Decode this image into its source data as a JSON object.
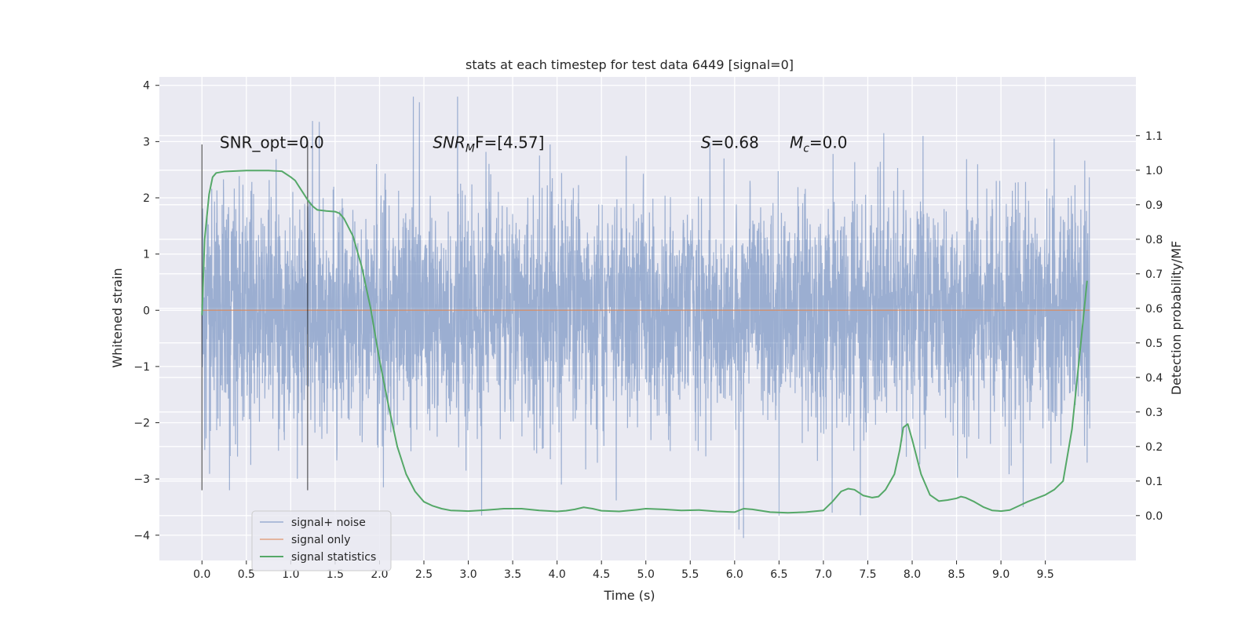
{
  "chart_data": {
    "type": "line",
    "title": "stats at each timestep for test data 6449 [signal=0]",
    "xlabel": "Time (s)",
    "ylabel": "Whitened strain",
    "y2label": "Detection probability/MF",
    "xlim": [
      -0.48,
      10.52
    ],
    "ylim": [
      -4.45,
      4.15
    ],
    "y2lim": [
      -0.13,
      1.27
    ],
    "xticks": [
      "0.0",
      "0.5",
      "1.0",
      "1.5",
      "2.0",
      "2.5",
      "3.0",
      "3.5",
      "4.0",
      "4.5",
      "5.0",
      "5.5",
      "6.0",
      "6.5",
      "7.0",
      "7.5",
      "8.0",
      "8.5",
      "9.0",
      "9.5"
    ],
    "yticks": [
      "4",
      "3",
      "2",
      "1",
      "0",
      "−1",
      "−2",
      "−3",
      "−4"
    ],
    "y2ticks": [
      "1.1",
      "1.0",
      "0.9",
      "0.8",
      "0.7",
      "0.6",
      "0.5",
      "0.4",
      "0.3",
      "0.2",
      "0.1",
      "0.0"
    ],
    "grid": true,
    "legend_position": "lower-left",
    "annotations": [
      {
        "text": "SNR_opt=0.0",
        "x": 0.2,
        "y": 3.0
      },
      {
        "text": "SNR",
        "sub": "M",
        "tail": "F=[4.57]",
        "x": 2.6,
        "y": 3.0
      },
      {
        "text": "S",
        "tail": "=0.68",
        "x": 5.62,
        "y": 3.0
      },
      {
        "text": "M",
        "sub": "c",
        "tail": "=0.0",
        "x": 6.62,
        "y": 3.0
      }
    ],
    "vlines": [
      {
        "x": 0.0,
        "ymin": -3.2,
        "ymax": 2.95
      },
      {
        "x": 1.19,
        "ymin": -3.2,
        "ymax": 3.0
      }
    ],
    "series": [
      {
        "name": "signal+ noise",
        "color": "#4c72b0",
        "axis": "left",
        "x_range": [
          0.0,
          10.0
        ],
        "typical_amplitude": 1.0,
        "peak_max": 3.8,
        "peak_min": -4.05,
        "notable_peaks": [
          [
            2.38,
            3.8
          ],
          [
            2.88,
            3.8
          ],
          [
            2.45,
            3.7
          ],
          [
            6.1,
            -4.05
          ],
          [
            6.05,
            -3.9
          ],
          [
            3.15,
            -3.65
          ],
          [
            6.5,
            -3.65
          ],
          [
            4.05,
            -3.1
          ],
          [
            7.1,
            -3.6
          ],
          [
            9.25,
            -3.5
          ],
          [
            9.6,
            3.05
          ],
          [
            7.68,
            3.15
          ],
          [
            1.32,
            3.35
          ]
        ]
      },
      {
        "name": "signal only",
        "color": "#dd8452",
        "axis": "left",
        "x": [
          0.0,
          10.0
        ],
        "values": [
          0.0,
          0.0
        ]
      },
      {
        "name": "signal statistics",
        "color": "#55a868",
        "axis": "right",
        "x": [
          0.0,
          0.03,
          0.08,
          0.12,
          0.16,
          0.25,
          0.5,
          0.75,
          0.9,
          1.0,
          1.05,
          1.1,
          1.15,
          1.2,
          1.25,
          1.3,
          1.4,
          1.5,
          1.55,
          1.6,
          1.7,
          1.8,
          1.9,
          2.0,
          2.1,
          2.2,
          2.3,
          2.4,
          2.5,
          2.6,
          2.7,
          2.8,
          2.9,
          3.0,
          3.2,
          3.4,
          3.6,
          3.8,
          4.0,
          4.1,
          4.2,
          4.3,
          4.4,
          4.5,
          4.7,
          4.9,
          5.0,
          5.2,
          5.4,
          5.6,
          5.8,
          6.0,
          6.1,
          6.2,
          6.4,
          6.6,
          6.8,
          7.0,
          7.1,
          7.2,
          7.28,
          7.35,
          7.45,
          7.55,
          7.62,
          7.7,
          7.8,
          7.86,
          7.9,
          7.95,
          8.0,
          8.1,
          8.2,
          8.3,
          8.4,
          8.5,
          8.55,
          8.6,
          8.7,
          8.8,
          8.9,
          9.0,
          9.1,
          9.2,
          9.3,
          9.4,
          9.5,
          9.6,
          9.7,
          9.8,
          9.9,
          9.97
        ],
        "values": [
          0.58,
          0.8,
          0.93,
          0.98,
          0.992,
          0.996,
          0.999,
          0.999,
          0.997,
          0.98,
          0.97,
          0.95,
          0.93,
          0.91,
          0.895,
          0.885,
          0.882,
          0.88,
          0.875,
          0.86,
          0.81,
          0.72,
          0.6,
          0.45,
          0.32,
          0.2,
          0.12,
          0.07,
          0.04,
          0.028,
          0.02,
          0.015,
          0.014,
          0.013,
          0.016,
          0.02,
          0.02,
          0.015,
          0.012,
          0.014,
          0.018,
          0.024,
          0.02,
          0.014,
          0.012,
          0.017,
          0.02,
          0.018,
          0.015,
          0.016,
          0.012,
          0.01,
          0.02,
          0.018,
          0.01,
          0.008,
          0.01,
          0.015,
          0.04,
          0.07,
          0.078,
          0.075,
          0.058,
          0.052,
          0.055,
          0.075,
          0.12,
          0.19,
          0.255,
          0.265,
          0.22,
          0.12,
          0.06,
          0.042,
          0.045,
          0.05,
          0.055,
          0.052,
          0.04,
          0.025,
          0.015,
          0.013,
          0.016,
          0.028,
          0.04,
          0.05,
          0.06,
          0.075,
          0.1,
          0.25,
          0.5,
          0.68
        ]
      }
    ]
  }
}
